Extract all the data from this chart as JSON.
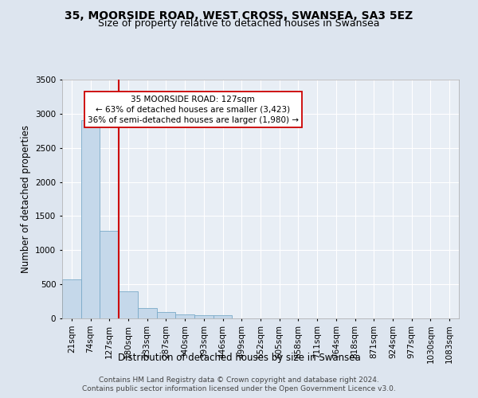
{
  "title_line1": "35, MOORSIDE ROAD, WEST CROSS, SWANSEA, SA3 5EZ",
  "title_line2": "Size of property relative to detached houses in Swansea",
  "xlabel": "Distribution of detached houses by size in Swansea",
  "ylabel": "Number of detached properties",
  "categories": [
    "21sqm",
    "74sqm",
    "127sqm",
    "180sqm",
    "233sqm",
    "287sqm",
    "340sqm",
    "393sqm",
    "446sqm",
    "499sqm",
    "552sqm",
    "605sqm",
    "658sqm",
    "711sqm",
    "764sqm",
    "818sqm",
    "871sqm",
    "924sqm",
    "977sqm",
    "1030sqm",
    "1083sqm"
  ],
  "values": [
    570,
    2900,
    1280,
    400,
    155,
    90,
    55,
    50,
    45,
    5,
    3,
    2,
    1,
    0,
    0,
    0,
    0,
    0,
    0,
    0,
    0
  ],
  "bar_color": "#c5d8ea",
  "bar_edge_color": "#7aaac8",
  "vline_index": 2,
  "vline_color": "#cc0000",
  "ylim": [
    0,
    3500
  ],
  "yticks": [
    0,
    500,
    1000,
    1500,
    2000,
    2500,
    3000,
    3500
  ],
  "annotation_text": "35 MOORSIDE ROAD: 127sqm\n← 63% of detached houses are smaller (3,423)\n36% of semi-detached houses are larger (1,980) →",
  "annotation_box_facecolor": "#ffffff",
  "annotation_box_edgecolor": "#cc0000",
  "footer_line1": "Contains HM Land Registry data © Crown copyright and database right 2024.",
  "footer_line2": "Contains public sector information licensed under the Open Government Licence v3.0.",
  "bg_color": "#dde5ef",
  "plot_bg_color": "#e8eef5",
  "grid_color": "#ffffff",
  "title_fontsize": 10,
  "subtitle_fontsize": 9,
  "axis_label_fontsize": 8.5,
  "tick_fontsize": 7.5,
  "annotation_fontsize": 7.5,
  "footer_fontsize": 6.5
}
